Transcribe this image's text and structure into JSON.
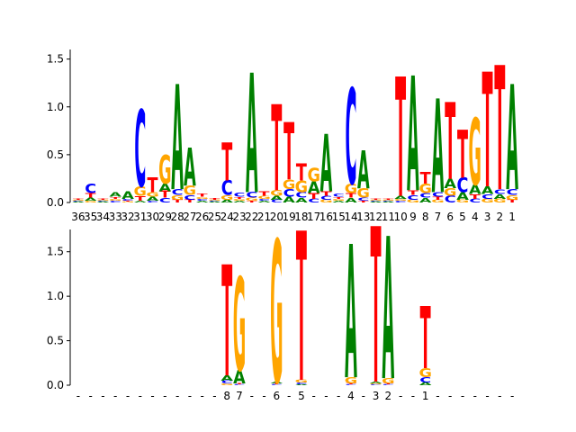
{
  "chart_data": [
    {
      "type": "sequence-logo",
      "alphabet": [
        "A",
        "C",
        "G",
        "T"
      ],
      "colors": {
        "A": "#008000",
        "C": "#0000ff",
        "G": "#ffa500",
        "T": "#ff0000"
      },
      "ylim": [
        0,
        1.6
      ],
      "yticks": [
        "0.0",
        "0.5",
        "1.0",
        "1.5"
      ],
      "positions": [
        {
          "label": "36",
          "A": 0.01,
          "C": 0.01,
          "G": 0.01,
          "T": 0.01
        },
        {
          "label": "35",
          "A": 0.03,
          "C": 0.1,
          "G": 0.02,
          "T": 0.05
        },
        {
          "label": "34",
          "A": 0.01,
          "C": 0.01,
          "G": 0.01,
          "T": 0.01
        },
        {
          "label": "33",
          "A": 0.05,
          "C": 0.02,
          "G": 0.02,
          "T": 0.02
        },
        {
          "label": "32",
          "A": 0.08,
          "C": 0.02,
          "G": 0.01,
          "T": 0.01
        },
        {
          "label": "31",
          "A": 0.02,
          "C": 0.8,
          "G": 0.1,
          "T": 0.05
        },
        {
          "label": "30",
          "A": 0.04,
          "C": 0.02,
          "G": 0.05,
          "T": 0.15
        },
        {
          "label": "29",
          "A": 0.08,
          "C": 0.05,
          "G": 0.3,
          "T": 0.07
        },
        {
          "label": "28",
          "A": 1.1,
          "C": 0.06,
          "G": 0.05,
          "T": 0.03
        },
        {
          "label": "27",
          "A": 0.4,
          "C": 0.05,
          "G": 0.1,
          "T": 0.03
        },
        {
          "label": "26",
          "A": 0.02,
          "C": 0.02,
          "G": 0.02,
          "T": 0.03
        },
        {
          "label": "25",
          "A": 0.01,
          "C": 0.01,
          "G": 0.01,
          "T": 0.02
        },
        {
          "label": "24",
          "A": 0.03,
          "C": 0.15,
          "G": 0.05,
          "T": 0.4
        },
        {
          "label": "23",
          "A": 0.02,
          "C": 0.04,
          "G": 0.02,
          "T": 0.02
        },
        {
          "label": "22",
          "A": 1.25,
          "C": 0.06,
          "G": 0.03,
          "T": 0.02
        },
        {
          "label": "21",
          "A": 0.02,
          "C": 0.02,
          "G": 0.03,
          "T": 0.05
        },
        {
          "label": "20",
          "A": 0.04,
          "C": 0.03,
          "G": 0.06,
          "T": 0.9
        },
        {
          "label": "19",
          "A": 0.06,
          "C": 0.08,
          "G": 0.1,
          "T": 0.6
        },
        {
          "label": "18",
          "A": 0.05,
          "C": 0.06,
          "G": 0.12,
          "T": 0.18
        },
        {
          "label": "17",
          "A": 0.12,
          "C": 0.04,
          "G": 0.14,
          "T": 0.06
        },
        {
          "label": "16",
          "A": 0.6,
          "C": 0.04,
          "G": 0.03,
          "T": 0.05
        },
        {
          "label": "15",
          "A": 0.02,
          "C": 0.03,
          "G": 0.02,
          "T": 0.02
        },
        {
          "label": "14",
          "A": 0.05,
          "C": 1.0,
          "G": 0.1,
          "T": 0.05
        },
        {
          "label": "13",
          "A": 0.4,
          "C": 0.03,
          "G": 0.1,
          "T": 0.02
        },
        {
          "label": "12",
          "A": 0.01,
          "C": 0.01,
          "G": 0.01,
          "T": 0.01
        },
        {
          "label": "11",
          "A": 0.01,
          "C": 0.01,
          "G": 0.01,
          "T": 0.01
        },
        {
          "label": "10",
          "A": 0.03,
          "C": 0.02,
          "G": 0.02,
          "T": 1.25
        },
        {
          "label": "9",
          "A": 1.2,
          "C": 0.05,
          "G": 0.03,
          "T": 0.05
        },
        {
          "label": "8",
          "A": 0.05,
          "C": 0.05,
          "G": 0.1,
          "T": 0.12
        },
        {
          "label": "7",
          "A": 0.98,
          "C": 0.05,
          "G": 0.03,
          "T": 0.03
        },
        {
          "label": "6",
          "A": 0.1,
          "C": 0.07,
          "G": 0.08,
          "T": 0.8
        },
        {
          "label": "5",
          "A": 0.08,
          "C": 0.15,
          "G": 0.03,
          "T": 0.5
        },
        {
          "label": "4",
          "A": 0.1,
          "C": 0.04,
          "G": 0.7,
          "T": 0.05
        },
        {
          "label": "3",
          "A": 0.08,
          "C": 0.05,
          "G": 0.04,
          "T": 1.2
        },
        {
          "label": "2",
          "A": 0.05,
          "C": 0.05,
          "G": 0.04,
          "T": 1.3
        },
        {
          "label": "1",
          "A": 1.1,
          "C": 0.06,
          "G": 0.05,
          "T": 0.03
        }
      ],
      "extra_columns": [
        {
          "label": "",
          "A": 0.04,
          "C": 0.04,
          "G": 0.1,
          "T": 0.15
        },
        {
          "label": "",
          "A": 0.03,
          "C": 0.03,
          "G": 0.06,
          "T": 0.03
        },
        {
          "label": "",
          "A": 0.03,
          "C": 0.03,
          "G": 0.04,
          "T": 0.04
        },
        {
          "label": "",
          "A": 0.03,
          "C": 0.12,
          "G": 0.03,
          "T": 0.15
        }
      ]
    },
    {
      "type": "sequence-logo",
      "alphabet": [
        "A",
        "C",
        "G",
        "T"
      ],
      "colors": {
        "A": "#008000",
        "C": "#0000ff",
        "G": "#ffa500",
        "T": "#ff0000"
      },
      "ylim": [
        0,
        1.75
      ],
      "yticks": [
        "0.0",
        "0.5",
        "1.0",
        "1.5"
      ],
      "positions": [
        {
          "label": "-"
        },
        {
          "label": "-"
        },
        {
          "label": "-"
        },
        {
          "label": "-"
        },
        {
          "label": "-"
        },
        {
          "label": "-"
        },
        {
          "label": "-"
        },
        {
          "label": "-"
        },
        {
          "label": "-"
        },
        {
          "label": "-"
        },
        {
          "label": "-"
        },
        {
          "label": "-"
        },
        {
          "label": "8",
          "A": 0.06,
          "C": 0.03,
          "G": 0.02,
          "T": 1.25
        },
        {
          "label": "7",
          "A": 0.15,
          "C": 0.01,
          "G": 1.05,
          "T": 0.01
        },
        {
          "label": "-"
        },
        {
          "label": "-"
        },
        {
          "label": "6",
          "A": 0.02,
          "C": 0.01,
          "G": 1.6,
          "T": 0.01
        },
        {
          "label": "-"
        },
        {
          "label": "5",
          "A": 0.01,
          "C": 0.02,
          "G": 0.03,
          "T": 1.68
        },
        {
          "label": "-"
        },
        {
          "label": "-"
        },
        {
          "label": "-"
        },
        {
          "label": "4",
          "A": 1.5,
          "C": 0.01,
          "G": 0.07,
          "T": 0.01
        },
        {
          "label": "-"
        },
        {
          "label": "3",
          "A": 0.02,
          "C": 0.01,
          "G": 0.01,
          "T": 1.75
        },
        {
          "label": "2",
          "A": 1.6,
          "C": 0.01,
          "G": 0.06,
          "T": 0.01
        },
        {
          "label": "-"
        },
        {
          "label": "-"
        },
        {
          "label": "1",
          "A": 0.03,
          "C": 0.06,
          "G": 0.1,
          "T": 0.7
        },
        {
          "label": "-"
        },
        {
          "label": "-"
        },
        {
          "label": "-"
        },
        {
          "label": "-"
        },
        {
          "label": "-"
        },
        {
          "label": "-"
        },
        {
          "label": "-"
        }
      ]
    }
  ]
}
